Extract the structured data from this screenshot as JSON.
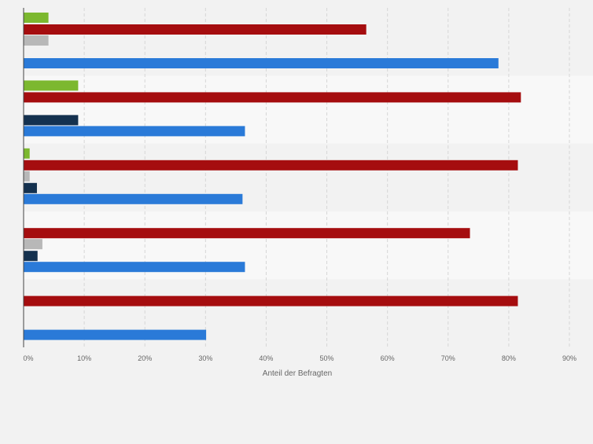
{
  "chart_data": {
    "type": "bar",
    "orientation": "horizontal",
    "xlabel": "Anteil der Befragten",
    "ylabel": "",
    "xlim": [
      0,
      90
    ],
    "x_ticks": [
      "0%",
      "10%",
      "20%",
      "30%",
      "40%",
      "50%",
      "60%",
      "70%",
      "80%",
      "90%"
    ],
    "grid": "vertical dashed",
    "categories": [
      "",
      "",
      "",
      "",
      ""
    ],
    "series": [
      {
        "color": "#7cb82f",
        "values": [
          4.1,
          9.0,
          1.0,
          null,
          null
        ]
      },
      {
        "color": "#a50d0f",
        "values": [
          56.5,
          82.0,
          81.5,
          73.6,
          81.5
        ]
      },
      {
        "color": "#b8b8b8",
        "values": [
          4.1,
          null,
          1.0,
          3.1,
          null
        ]
      },
      {
        "color": "#14314f",
        "values": [
          null,
          9.0,
          2.2,
          2.3,
          null
        ]
      },
      {
        "color": "#2a7ad8",
        "values": [
          78.3,
          36.5,
          36.1,
          36.5,
          30.1
        ]
      }
    ]
  }
}
